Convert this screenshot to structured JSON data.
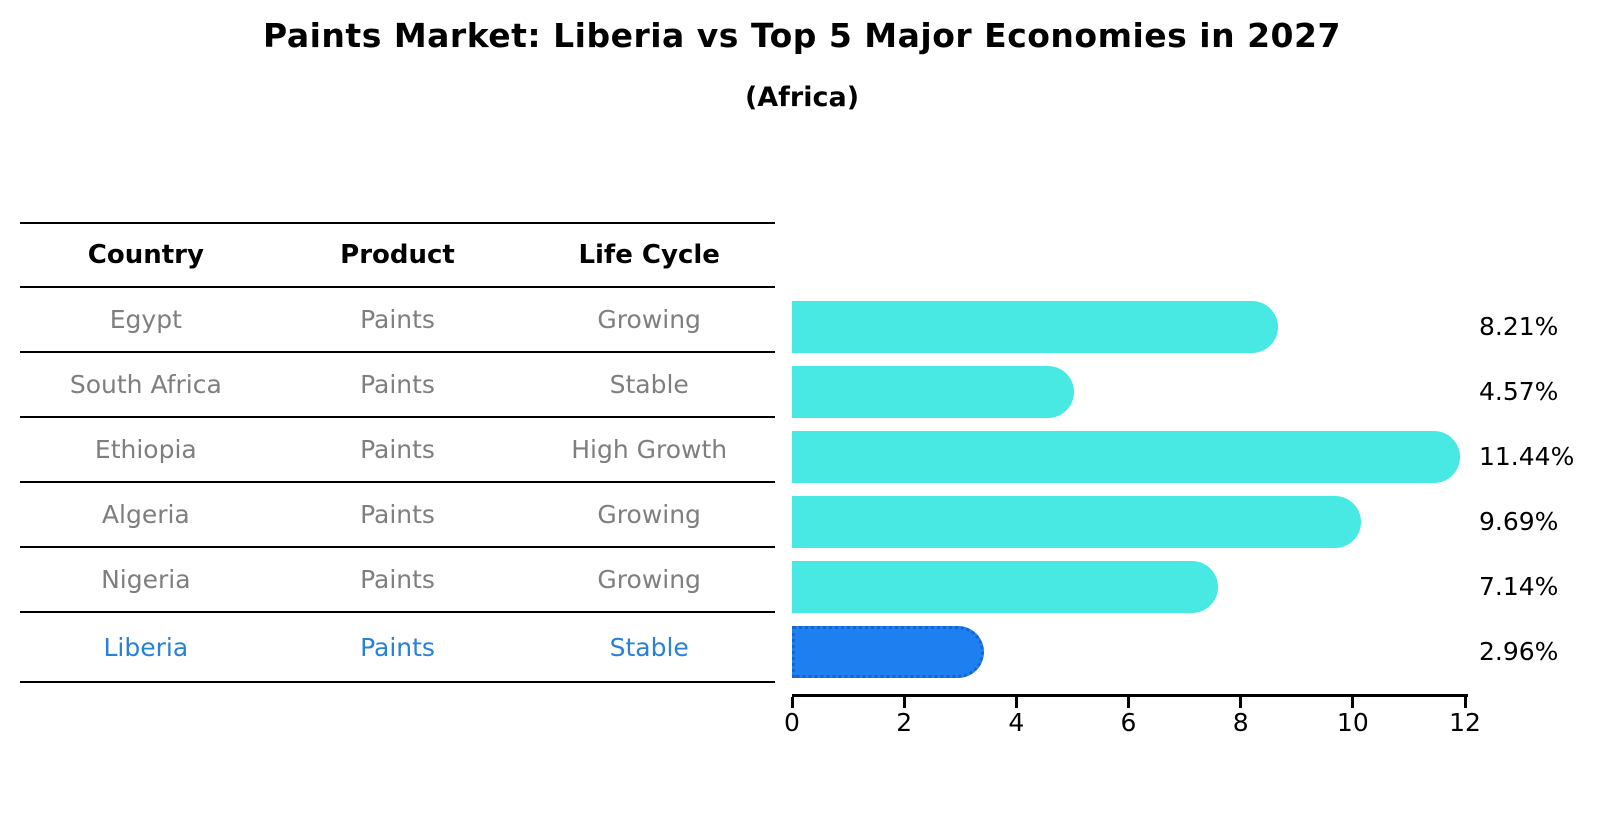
{
  "header": {
    "title": "Paints Market: Liberia vs Top 5 Major Economies in 2027",
    "subtitle": "(Africa)"
  },
  "table": {
    "headers": [
      "Country",
      "Product",
      "Life Cycle"
    ],
    "rows": [
      {
        "country": "Egypt",
        "product": "Paints",
        "life_cycle": "Growing"
      },
      {
        "country": "South Africa",
        "product": "Paints",
        "life_cycle": "Stable"
      },
      {
        "country": "Ethiopia",
        "product": "Paints",
        "life_cycle": "High Growth"
      },
      {
        "country": "Algeria",
        "product": "Paints",
        "life_cycle": "Growing"
      },
      {
        "country": "Nigeria",
        "product": "Paints",
        "life_cycle": "Growing"
      },
      {
        "country": "Liberia",
        "product": "Paints",
        "life_cycle": "Stable"
      }
    ],
    "highlight_row": "Liberia"
  },
  "chart_data": {
    "type": "bar",
    "orientation": "horizontal",
    "title": "Paints Market: Liberia vs Top 5 Major Economies in 2027",
    "subtitle": "(Africa)",
    "categories": [
      "Egypt",
      "South Africa",
      "Ethiopia",
      "Algeria",
      "Nigeria",
      "Liberia"
    ],
    "values": [
      8.21,
      4.57,
      11.44,
      9.69,
      7.14,
      2.96
    ],
    "value_labels": [
      "8.21%",
      "4.57%",
      "11.44%",
      "9.69%",
      "7.14%",
      "2.96%"
    ],
    "unit": "%",
    "xlabel": "",
    "ylabel": "",
    "xlim": [
      0,
      12
    ],
    "x_ticks": [
      0,
      2,
      4,
      6,
      8,
      10,
      12
    ],
    "grid": false,
    "legend": false,
    "bar_colors": [
      "#48e8e3",
      "#48e8e3",
      "#48e8e3",
      "#48e8e3",
      "#48e8e3",
      "#1e7ff0"
    ],
    "highlight_index": 5,
    "highlight_border_color": "#1565d0"
  },
  "colors": {
    "bar_cyan": "#48e8e3",
    "bar_blue": "#1e7ff0",
    "highlight_text": "#2980d9",
    "body_text": "#7f7f7f",
    "axis": "#000000"
  }
}
